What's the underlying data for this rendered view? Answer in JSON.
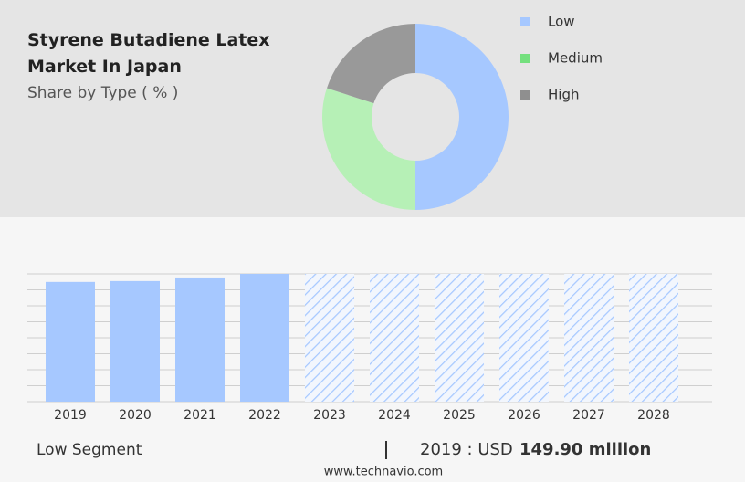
{
  "chart_data": [
    {
      "type": "donut",
      "title": "Styrene Butadiene Latex Market In Japan",
      "subtitle": "Share by Type ( % )",
      "categories": [
        "Low",
        "Medium",
        "High"
      ],
      "values": [
        50,
        30,
        20
      ],
      "colors": [
        "#a6c8ff",
        "#b6f0b6",
        "#999999"
      ],
      "legend_colors": [
        "#a6c8ff",
        "#74e07e",
        "#8f8f8f"
      ]
    },
    {
      "type": "bar",
      "categories": [
        "2019",
        "2020",
        "2021",
        "2022",
        "2023",
        "2024",
        "2025",
        "2026",
        "2027",
        "2028"
      ],
      "values": [
        149.9,
        151,
        155.5,
        160,
        160,
        160,
        160,
        160,
        160,
        160
      ],
      "styles": [
        "solid",
        "solid",
        "solid",
        "solid",
        "hatched",
        "hatched",
        "hatched",
        "hatched",
        "hatched",
        "hatched"
      ],
      "color": "#a6c8ff",
      "ylim": [
        0,
        160
      ],
      "yticks": [
        0,
        20,
        40,
        60,
        80,
        100,
        120,
        140,
        160
      ],
      "grid": true
    }
  ],
  "footer": {
    "segment": "Low Segment",
    "year_text": "2019 : USD",
    "value_label": "149.90 million",
    "source": "www.technavio.com"
  }
}
